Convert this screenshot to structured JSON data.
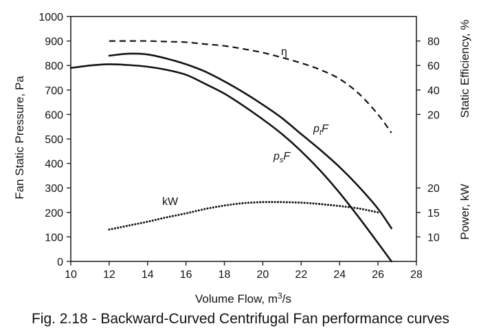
{
  "chart_data": {
    "type": "line",
    "caption": "Fig. 2.18 - Backward-Curved Centrifugal Fan performance curves",
    "x_axis": {
      "label": "Volume Flow, m³/s",
      "range": [
        10,
        28
      ],
      "ticks": [
        "10",
        "12",
        "14",
        "16",
        "18",
        "20",
        "22",
        "24",
        "26",
        "28"
      ]
    },
    "y_left": {
      "label": "Fan Static Pressure, Pa",
      "range": [
        0,
        1000
      ],
      "ticks": [
        "0",
        "100",
        "200",
        "300",
        "400",
        "500",
        "600",
        "700",
        "800",
        "900",
        "1000"
      ]
    },
    "y_right_efficiency": {
      "label": "Static Efficiency, %",
      "ticks": [
        {
          "label": "80",
          "pressure_equiv": 900
        },
        {
          "label": "60",
          "pressure_equiv": 800
        },
        {
          "label": "40",
          "pressure_equiv": 700
        },
        {
          "label": "20",
          "pressure_equiv": 600
        }
      ]
    },
    "y_right_power": {
      "label": "Power, kW",
      "ticks": [
        {
          "label": "20",
          "pressure_equiv": 300
        },
        {
          "label": "15",
          "pressure_equiv": 200
        },
        {
          "label": "10",
          "pressure_equiv": 100
        }
      ]
    },
    "grid": false,
    "series": [
      {
        "name": "ptF",
        "style": "solid",
        "x": [
          12,
          13,
          14,
          15,
          16,
          17,
          18,
          19,
          20,
          21,
          22,
          23,
          24,
          25,
          26,
          26.7
        ],
        "y": [
          840,
          848,
          845,
          828,
          805,
          775,
          735,
          690,
          640,
          585,
          520,
          455,
          385,
          305,
          215,
          135
        ]
      },
      {
        "name": "psF",
        "style": "solid",
        "x": [
          10,
          11,
          12,
          13,
          14,
          15,
          16,
          17,
          18,
          19,
          20,
          21,
          22,
          23,
          24,
          25,
          26,
          26.7
        ],
        "y": [
          790,
          800,
          805,
          802,
          795,
          782,
          762,
          725,
          685,
          635,
          580,
          520,
          450,
          370,
          280,
          180,
          75,
          0
        ]
      },
      {
        "name": "η",
        "style": "dashed",
        "unit": "%",
        "x": [
          12,
          13,
          14,
          15,
          16,
          17,
          18,
          19,
          20,
          21,
          22,
          23,
          24,
          25,
          26,
          26.7
        ],
        "y": [
          80,
          80,
          80,
          79.5,
          79,
          77.5,
          76,
          73.5,
          70.5,
          66.5,
          62,
          56.5,
          49,
          37,
          20,
          5
        ]
      },
      {
        "name": "kW",
        "style": "dotted",
        "unit": "kW",
        "x": [
          12,
          13,
          14,
          15,
          16,
          17,
          18,
          19,
          20,
          21,
          22,
          23,
          24,
          25,
          26
        ],
        "y": [
          11.5,
          12.3,
          13.1,
          14.0,
          14.8,
          15.7,
          16.4,
          16.9,
          17.1,
          17.1,
          17.0,
          16.7,
          16.3,
          15.8,
          15.0
        ]
      }
    ],
    "series_labels": {
      "ptF": {
        "base": "p",
        "sub": "t",
        "tail": "F"
      },
      "psF": {
        "base": "p",
        "sub": "s",
        "tail": "F"
      },
      "eta": "η",
      "kW": "kW"
    }
  }
}
